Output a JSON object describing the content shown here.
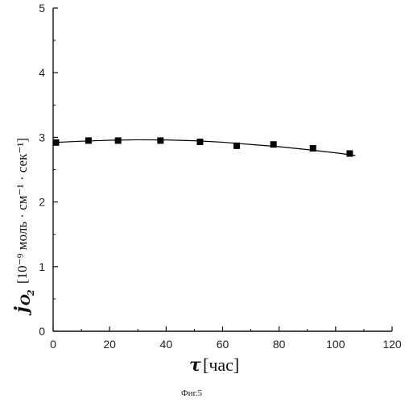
{
  "chart_data": {
    "type": "scatter",
    "x": [
      1,
      12.5,
      23,
      38,
      52,
      65,
      78,
      92,
      105
    ],
    "y": [
      2.92,
      2.95,
      2.95,
      2.95,
      2.93,
      2.87,
      2.89,
      2.83,
      2.75
    ],
    "fit_line": {
      "x": [
        0,
        10,
        20,
        30,
        40,
        50,
        60,
        70,
        80,
        90,
        100,
        107
      ],
      "y": [
        2.92,
        2.94,
        2.955,
        2.962,
        2.96,
        2.947,
        2.925,
        2.89,
        2.855,
        2.81,
        2.76,
        2.72
      ]
    },
    "xlim": [
      0,
      120
    ],
    "ylim": [
      0,
      5
    ],
    "xticks": [
      "0",
      "20",
      "40",
      "60",
      "80",
      "100",
      "120"
    ],
    "yticks": [
      "0",
      "1",
      "2",
      "3",
      "4",
      "5"
    ],
    "xlabel": {
      "symbol": "τ",
      "unit": "[час]"
    },
    "ylabel": {
      "symbol_base": "j",
      "symbol_sub": "O",
      "symbol_subsub": "2",
      "unit": "[10⁻⁹ моль · см⁻¹ · сек⁻¹]"
    },
    "caption": "Фиг.5",
    "grid": false,
    "marker_color": "#000000",
    "line_color": "#000000"
  }
}
